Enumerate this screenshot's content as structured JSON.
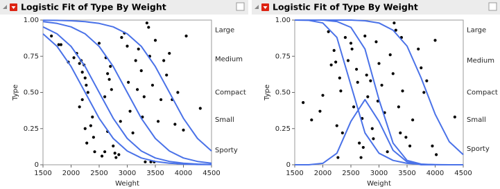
{
  "chart_data": [
    {
      "type": "scatter",
      "title": "Logistic Fit of Type By Weight",
      "x_label": "Weight",
      "y_label": "Type",
      "xlim": [
        1500,
        4500
      ],
      "xticks": [
        1500,
        2000,
        2500,
        3000,
        3500,
        4000,
        4500
      ],
      "ylim": [
        0,
        1
      ],
      "yticks": [
        0,
        0.25,
        {
          "value": 0.5,
          "label": "0.50"
        },
        0.75,
        {
          "value": 1,
          "label": "1.00"
        }
      ],
      "y2ticks": [
        {
          "value": 0.93,
          "label": "Large"
        },
        {
          "value": 0.73,
          "label": "Medium"
        },
        {
          "value": 0.5,
          "label": "Compact"
        },
        {
          "value": 0.31,
          "label": "Small"
        },
        {
          "value": 0.1,
          "label": "Sporty"
        }
      ],
      "point_color": "#000000",
      "curve_color": "#4a72e8",
      "x": [
        1650,
        1780,
        1820,
        1950,
        2050,
        2100,
        2150,
        2180,
        2200,
        2230,
        2250,
        2270,
        2200,
        2150,
        2300,
        2350,
        2280,
        2250,
        2380,
        2400,
        2420,
        2500,
        2550,
        2600,
        2620,
        2650,
        2680,
        2700,
        2720,
        2750,
        2780,
        2800,
        2850,
        2880,
        2900,
        2950,
        3000,
        3020,
        3050,
        3100,
        3150,
        3180,
        3200,
        3250,
        3270,
        3300,
        3320,
        3350,
        3380,
        3400,
        3450,
        3480,
        3500,
        3550,
        3600,
        3650,
        3700,
        3750,
        3800,
        3850,
        3900,
        4000,
        4050,
        4300,
        2600,
        2650,
        3420
      ],
      "values": [
        0.89,
        0.83,
        0.83,
        0.71,
        0.74,
        0.77,
        0.7,
        0.72,
        0.64,
        0.69,
        0.6,
        0.55,
        0.45,
        0.4,
        0.5,
        0.27,
        0.15,
        0.25,
        0.33,
        0.19,
        0.09,
        0.84,
        0.06,
        0.47,
        0.74,
        0.63,
        0.59,
        0.68,
        0.52,
        0.13,
        0.08,
        0.05,
        0.07,
        0.3,
        0.88,
        0.91,
        0.82,
        0.57,
        0.37,
        0.22,
        0.72,
        0.52,
        0.8,
        0.65,
        0.33,
        0.47,
        0.02,
        0.98,
        0.95,
        0.75,
        0.55,
        0.02,
        0.86,
        0.3,
        0.45,
        0.72,
        0.62,
        0.77,
        0.45,
        0.28,
        0.5,
        0.24,
        0.89,
        0.39,
        0.09,
        0.23,
        0.02
      ],
      "curve_x": [
        1500,
        1750,
        2000,
        2250,
        2500,
        2750,
        3000,
        3250,
        3500,
        3750,
        4000,
        4250,
        4500
      ],
      "curves": [
        {
          "values": [
            0.905,
            0.818,
            0.679,
            0.5,
            0.321,
            0.182,
            0.095,
            0.047,
            0.023,
            0.011,
            0.005,
            0.002,
            0.001
          ]
        },
        {
          "values": [
            0.953,
            0.905,
            0.818,
            0.679,
            0.5,
            0.321,
            0.182,
            0.095,
            0.047,
            0.023,
            0.011,
            0.005,
            0.002
          ]
        },
        {
          "values": [
            0.989,
            0.977,
            0.953,
            0.905,
            0.818,
            0.679,
            0.5,
            0.321,
            0.182,
            0.095,
            0.047,
            0.023,
            0.011
          ]
        },
        {
          "values": [
            0.999,
            0.998,
            0.995,
            0.989,
            0.977,
            0.953,
            0.905,
            0.818,
            0.679,
            0.5,
            0.321,
            0.182,
            0.095
          ]
        }
      ]
    },
    {
      "type": "scatter",
      "title": "Logistic Fit of Type By Weight",
      "x_label": "Weight",
      "y_label": "Type",
      "xlim": [
        1500,
        4500
      ],
      "xticks": [
        1500,
        2000,
        2500,
        3000,
        3500,
        4000,
        4500
      ],
      "ylim": [
        0,
        1
      ],
      "yticks": [
        0,
        0.25,
        {
          "value": 0.5,
          "label": "0.50"
        },
        0.75,
        {
          "value": 1,
          "label": "1.00"
        }
      ],
      "y2ticks": [
        {
          "value": 0.93,
          "label": "Large"
        },
        {
          "value": 0.72,
          "label": "Medium"
        },
        {
          "value": 0.5,
          "label": "Compact"
        },
        {
          "value": 0.31,
          "label": "Small"
        },
        {
          "value": 0.11,
          "label": "Sporty"
        }
      ],
      "point_color": "#000000",
      "curve_color": "#4a72e8",
      "x": [
        1650,
        1800,
        1950,
        2000,
        2150,
        2200,
        2230,
        2250,
        2270,
        2300,
        2320,
        2350,
        2400,
        2450,
        2500,
        2520,
        2550,
        2600,
        2620,
        2650,
        2680,
        2700,
        2720,
        2750,
        2780,
        2800,
        2850,
        2880,
        2900,
        2950,
        2980,
        3000,
        3050,
        3100,
        3150,
        3200,
        3250,
        3270,
        3300,
        3350,
        3380,
        3400,
        3420,
        3480,
        3550,
        3600,
        3700,
        3750,
        3800,
        3850,
        3950,
        4000,
        4020,
        4350,
        2100
      ],
      "values": [
        0.43,
        0.31,
        0.37,
        0.48,
        0.69,
        0.79,
        0.71,
        0.27,
        0.05,
        0.6,
        0.51,
        0.22,
        0.88,
        0.72,
        0.84,
        0.8,
        0.4,
        0.66,
        0.57,
        0.15,
        0.05,
        0.32,
        0.12,
        0.89,
        0.62,
        0.47,
        0.58,
        0.25,
        0.18,
        0.85,
        0.44,
        0.7,
        0.55,
        0.36,
        0.09,
        0.76,
        0.63,
        0.98,
        0.93,
        0.4,
        0.22,
        0.88,
        0.51,
        0.19,
        0.13,
        0.31,
        0.8,
        0.67,
        0.5,
        0.58,
        0.13,
        0.86,
        0.07,
        0.33,
        0.92
      ],
      "curve_x": [
        1500,
        1750,
        2000,
        2250,
        2500,
        2750,
        3000,
        3250,
        3500,
        3750,
        4000,
        4250,
        4500
      ],
      "curves": [
        {
          "values": [
            1,
            0.998,
            0.98,
            0.88,
            0.55,
            0.22,
            0.08,
            0.03,
            0.01,
            0.003,
            0.001,
            0,
            0
          ]
        },
        {
          "values": [
            0,
            0,
            0.01,
            0.08,
            0.3,
            0.45,
            0.3,
            0.1,
            0.02,
            0,
            0,
            0,
            0
          ]
        },
        {
          "values": [
            1,
            1,
            1,
            0.99,
            0.95,
            0.8,
            0.45,
            0.15,
            0.03,
            0.005,
            0,
            0,
            0
          ]
        },
        {
          "values": [
            1,
            1,
            1,
            1,
            1,
            0.995,
            0.98,
            0.93,
            0.82,
            0.6,
            0.35,
            0.16,
            0.07
          ]
        }
      ]
    }
  ]
}
